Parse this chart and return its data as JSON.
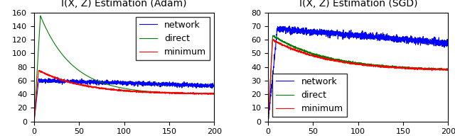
{
  "title_left": "I(X, Z) Estimation (Adam)",
  "title_right": "I(X, Z) Estimation (SGD)",
  "xlim": [
    0,
    200
  ],
  "left_ylim": [
    0,
    160
  ],
  "right_ylim": [
    0,
    80
  ],
  "left_yticks": [
    0,
    20,
    40,
    60,
    80,
    100,
    120,
    140,
    160
  ],
  "right_yticks": [
    0,
    10,
    20,
    30,
    40,
    50,
    60,
    70,
    80
  ],
  "xticks": [
    0,
    50,
    100,
    150,
    200
  ],
  "legend_labels": [
    "network",
    "direct",
    "minimum"
  ],
  "colors": {
    "network": "#0000ff",
    "direct": "#008000",
    "minimum": "#ff0000"
  },
  "background_color": "#ffffff",
  "title_fontsize": 10,
  "legend_fontsize": 9,
  "tick_fontsize": 8,
  "legend_left_loc": "upper right",
  "legend_right_loc": "lower left",
  "n_points": 2000
}
